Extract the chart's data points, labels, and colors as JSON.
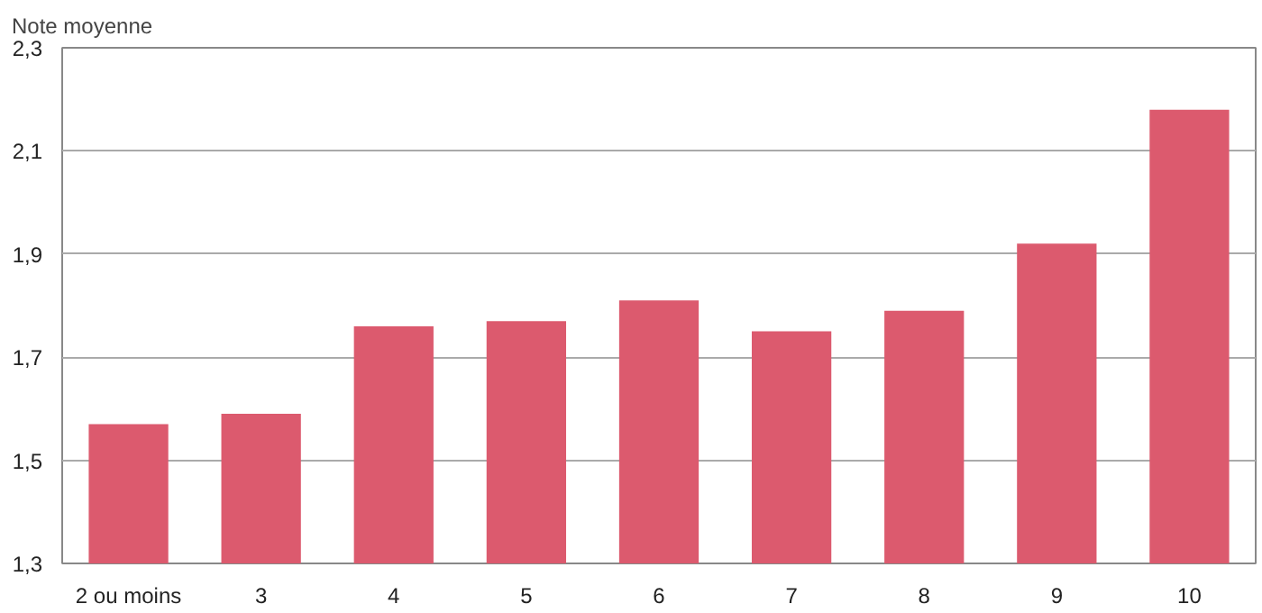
{
  "chart_data": {
    "type": "bar",
    "ylabel": "Note moyenne",
    "categories": [
      "2 ou moins",
      "3",
      "4",
      "5",
      "6",
      "7",
      "8",
      "9",
      "10"
    ],
    "values": [
      1.57,
      1.59,
      1.76,
      1.77,
      1.81,
      1.75,
      1.79,
      1.92,
      2.18
    ],
    "color": "#dc5a6e",
    "ylim": [
      1.3,
      2.3
    ],
    "yticks": [
      {
        "value": 1.3,
        "label": "1,3"
      },
      {
        "value": 1.5,
        "label": "1,5"
      },
      {
        "value": 1.7,
        "label": "1,7"
      },
      {
        "value": 1.9,
        "label": "1,9"
      },
      {
        "value": 2.1,
        "label": "2,1"
      },
      {
        "value": 2.3,
        "label": "2,3"
      }
    ],
    "grid": "y"
  }
}
